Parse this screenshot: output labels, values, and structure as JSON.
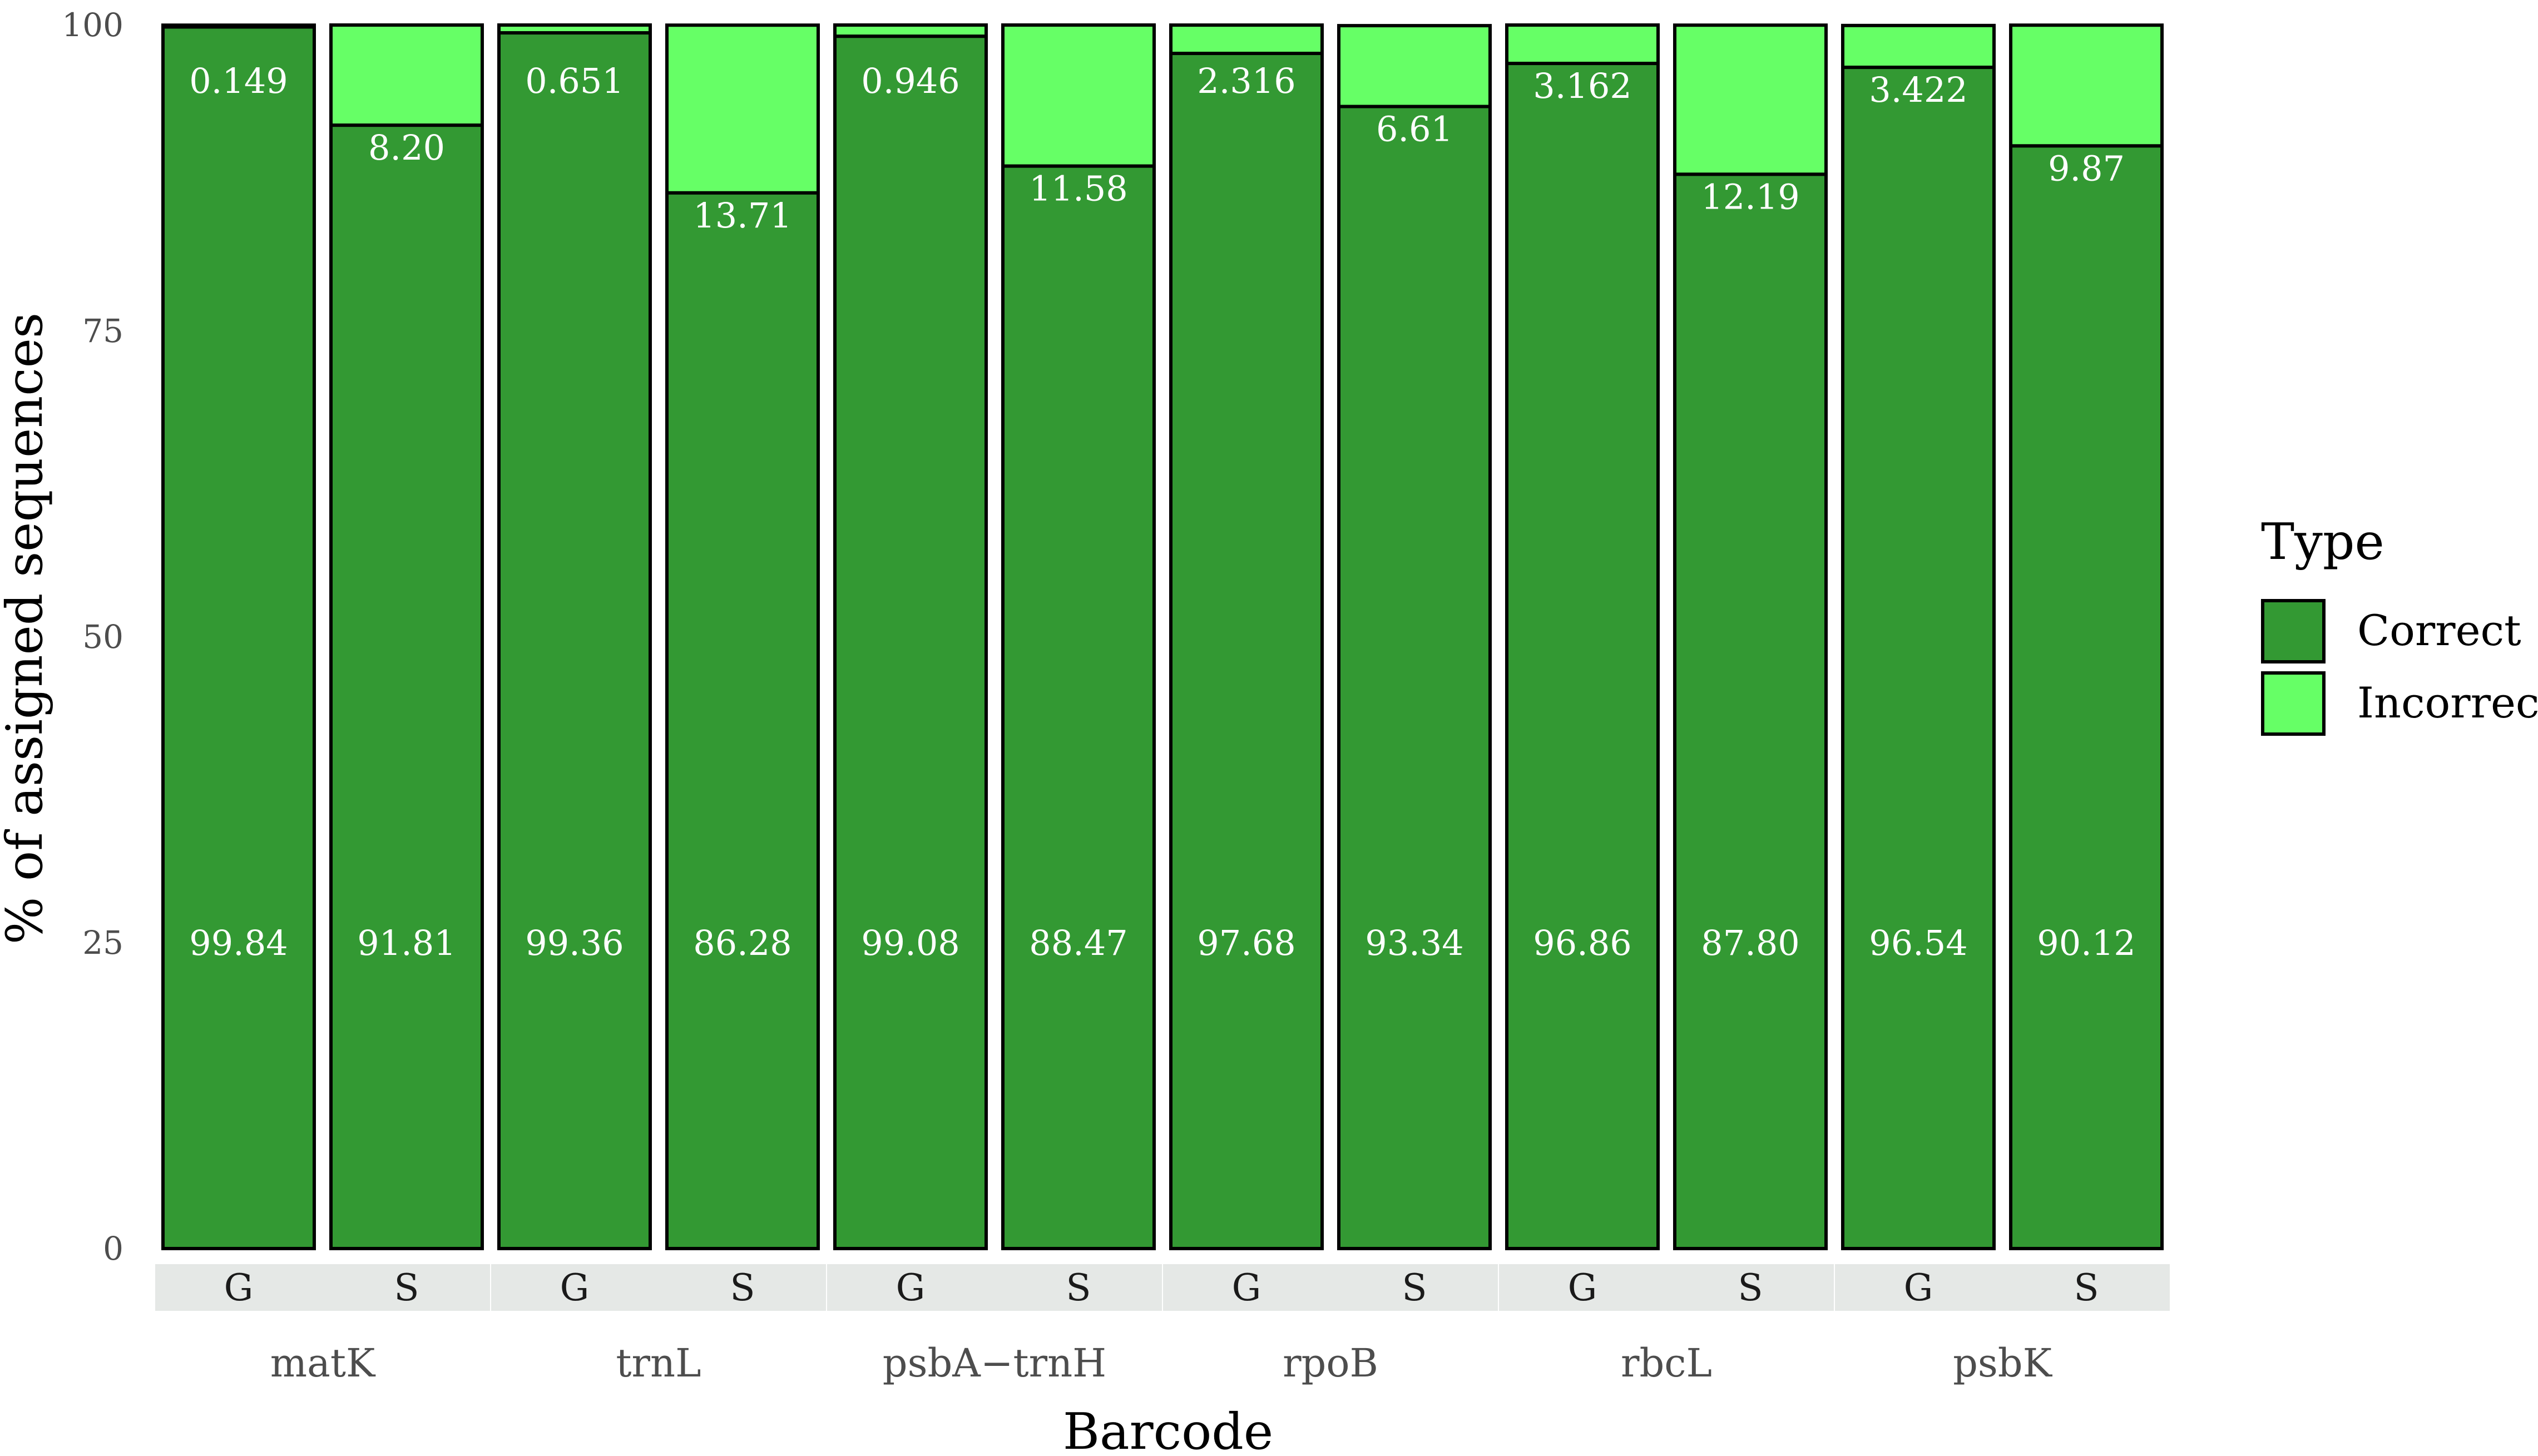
{
  "chart_data": {
    "type": "bar",
    "stacked": true,
    "xlabel": "Barcode",
    "ylabel": "% of assigned sequences",
    "ylim": [
      0,
      100
    ],
    "yticks": [
      "0",
      "25",
      "50",
      "75",
      "100"
    ],
    "grid": false,
    "legend": {
      "title": "Type",
      "placement": "right",
      "entries": [
        {
          "name": "Correct",
          "color": "#339933"
        },
        {
          "name": "Incorrect",
          "color": "#66ff66"
        }
      ]
    },
    "groups": [
      {
        "name": "matK",
        "bars": [
          {
            "label": "G",
            "correct": 99.84,
            "incorrect": 0.149,
            "correct_label": "99.84",
            "incorrect_label": "0.149"
          },
          {
            "label": "S",
            "correct": 91.81,
            "incorrect": 8.2,
            "correct_label": "91.81",
            "incorrect_label": "8.20"
          }
        ]
      },
      {
        "name": "trnL",
        "bars": [
          {
            "label": "G",
            "correct": 99.36,
            "incorrect": 0.651,
            "correct_label": "99.36",
            "incorrect_label": "0.651"
          },
          {
            "label": "S",
            "correct": 86.28,
            "incorrect": 13.71,
            "correct_label": "86.28",
            "incorrect_label": "13.71"
          }
        ]
      },
      {
        "name": "psbA−trnH",
        "bars": [
          {
            "label": "G",
            "correct": 99.08,
            "incorrect": 0.946,
            "correct_label": "99.08",
            "incorrect_label": "0.946"
          },
          {
            "label": "S",
            "correct": 88.47,
            "incorrect": 11.58,
            "correct_label": "88.47",
            "incorrect_label": "11.58"
          }
        ]
      },
      {
        "name": "rpoB",
        "bars": [
          {
            "label": "G",
            "correct": 97.68,
            "incorrect": 2.316,
            "correct_label": "97.68",
            "incorrect_label": "2.316"
          },
          {
            "label": "S",
            "correct": 93.34,
            "incorrect": 6.61,
            "correct_label": "93.34",
            "incorrect_label": "6.61"
          }
        ]
      },
      {
        "name": "rbcL",
        "bars": [
          {
            "label": "G",
            "correct": 96.86,
            "incorrect": 3.162,
            "correct_label": "96.86",
            "incorrect_label": "3.162"
          },
          {
            "label": "S",
            "correct": 87.8,
            "incorrect": 12.19,
            "correct_label": "87.80",
            "incorrect_label": "12.19"
          }
        ]
      },
      {
        "name": "psbK",
        "bars": [
          {
            "label": "G",
            "correct": 96.54,
            "incorrect": 3.422,
            "correct_label": "96.54",
            "incorrect_label": "3.422"
          },
          {
            "label": "S",
            "correct": 90.12,
            "incorrect": 9.87,
            "correct_label": "90.12",
            "incorrect_label": "9.87"
          }
        ]
      }
    ],
    "strip_color": "#e5e8e6"
  }
}
